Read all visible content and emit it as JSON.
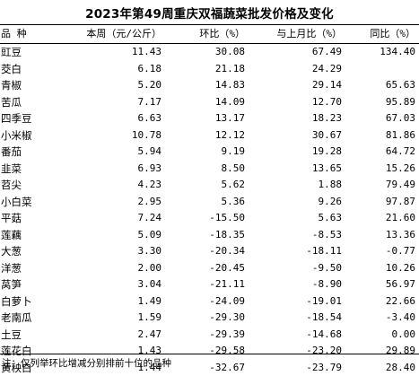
{
  "title": "2023年第49周重庆双福蔬菜批发价格及变化",
  "headers": [
    "品 种",
    "本周（元/公斤）",
    "环比（%）",
    "与上月比（%）",
    "同比（%）"
  ],
  "rows": [
    [
      "豇豆",
      "11.43",
      "30.08",
      "67.49",
      "134.40"
    ],
    [
      "茭白",
      "6.18",
      "21.18",
      "24.29",
      ""
    ],
    [
      "青椒",
      "5.20",
      "14.83",
      "29.14",
      "65.63"
    ],
    [
      "苦瓜",
      "7.17",
      "14.09",
      "12.70",
      "95.89"
    ],
    [
      "四季豆",
      "6.63",
      "13.17",
      "18.23",
      "67.03"
    ],
    [
      "小米椒",
      "10.78",
      "12.12",
      "30.67",
      "81.86"
    ],
    [
      "番茄",
      "5.94",
      "9.19",
      "19.28",
      "64.72"
    ],
    [
      "韭菜",
      "6.93",
      "8.50",
      "13.65",
      "15.26"
    ],
    [
      "苕尖",
      "4.23",
      "5.62",
      "1.88",
      "79.49"
    ],
    [
      "小白菜",
      "2.95",
      "5.36",
      "9.26",
      "97.87"
    ],
    [
      "平菇",
      "7.24",
      "-15.50",
      "5.63",
      "21.60"
    ],
    [
      "莲藕",
      "5.09",
      "-18.35",
      "-8.53",
      "13.36"
    ],
    [
      "大葱",
      "3.30",
      "-20.34",
      "-18.11",
      "-0.77"
    ],
    [
      "洋葱",
      "2.00",
      "-20.45",
      "-9.50",
      "10.26"
    ],
    [
      "莴笋",
      "3.04",
      "-21.11",
      "-8.90",
      "56.97"
    ],
    [
      "白萝卜",
      "1.49",
      "-24.09",
      "-19.01",
      "22.66"
    ],
    [
      "老南瓜",
      "1.59",
      "-29.30",
      "-18.54",
      "-3.40"
    ],
    [
      "土豆",
      "2.47",
      "-29.39",
      "-14.68",
      "0.00"
    ],
    [
      "莲花白",
      "1.43",
      "-29.58",
      "-23.20",
      "29.89"
    ],
    [
      "黄秧白",
      "1.44",
      "-32.67",
      "-23.79",
      "28.40"
    ]
  ],
  "note": "注：仅列举环比增减分别排前十位的品种"
}
